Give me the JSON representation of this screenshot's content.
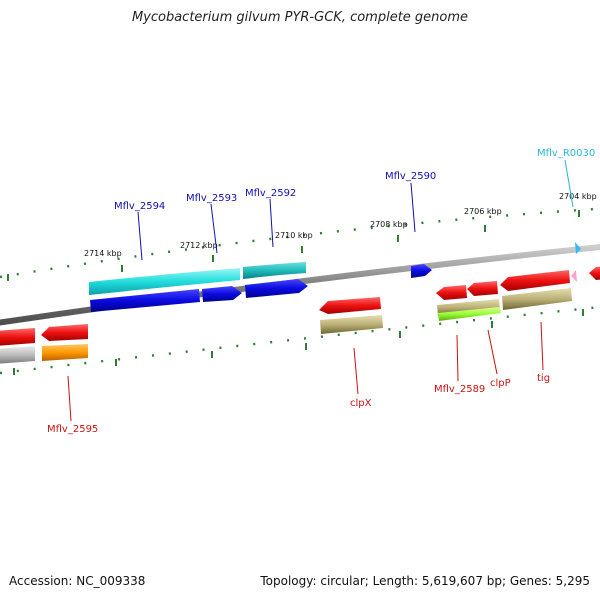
{
  "title": "Mycobacterium gilvum PYR-GCK, complete genome",
  "footer": {
    "accession": "Accession: NC_009338",
    "summary": "Topology: circular; Length: 5,619,607 bp; Genes: 5,295"
  },
  "colors": {
    "backbone": "#888888",
    "tick": "#2e7d32",
    "label_forward": "#1010b0",
    "label_reverse": "#cc1111",
    "label_rna": "#29b8d8"
  },
  "ruler_ticks": [
    "2714 kbp",
    "2712 kbp",
    "2710 kbp",
    "2708 kbp",
    "2706 kbp",
    "2704 kbp"
  ],
  "gene_labels": {
    "forward": [
      "Mflv_2594",
      "Mflv_2593",
      "Mflv_2592",
      "Mflv_2590"
    ],
    "reverse": [
      "Mflv_2595",
      "clpX",
      "Mflv_2589",
      "clpP",
      "tig"
    ],
    "rna": [
      "Mflv_R0030"
    ]
  },
  "feature_colors": {
    "forward_cds": "#0a0ae0",
    "reverse_cds": "#ee1111",
    "cog_cyan": "#22dddd",
    "cog_teal": "#22bbbb",
    "cog_olive": "#bbb077",
    "cog_gray": "#bbbbbb",
    "cog_orange": "#ff9900",
    "cog_lime": "#99ff33",
    "rna_pink": "#f2a6cf",
    "rna_cyan": "#33bbee"
  }
}
